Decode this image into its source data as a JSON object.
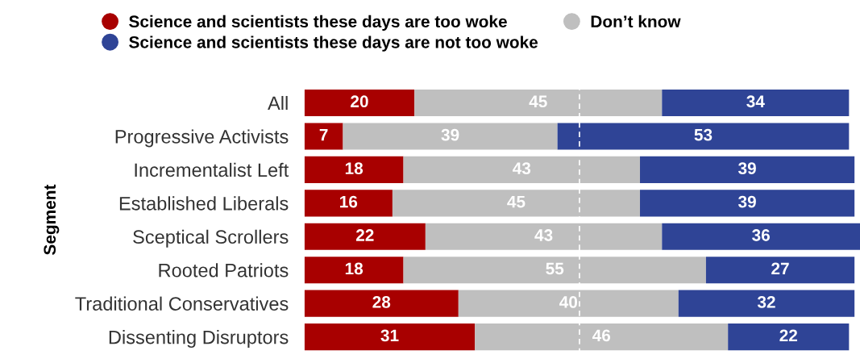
{
  "chart_data": {
    "type": "bar",
    "orientation": "horizontal",
    "stacked": true,
    "ylabel": "Segment",
    "categories": [
      "All",
      "Progressive Activists",
      "Incrementalist Left",
      "Established Liberals",
      "Sceptical Scrollers",
      "Rooted Patriots",
      "Traditional Conservatives",
      "Dissenting Disruptors"
    ],
    "series": [
      {
        "name": "Science and scientists these days are too woke",
        "color": "#a80000",
        "values": [
          20,
          7,
          18,
          16,
          22,
          18,
          28,
          31
        ]
      },
      {
        "name": "Don’t know",
        "color": "#bfbfbf",
        "values": [
          45,
          39,
          43,
          45,
          43,
          55,
          40,
          46
        ]
      },
      {
        "name": "Science and scientists these days are not too woke",
        "color": "#2f4496",
        "values": [
          34,
          53,
          39,
          39,
          36,
          27,
          32,
          22
        ]
      }
    ],
    "data_labels": true,
    "legend": "top",
    "grid": false,
    "ref_lines": [
      {
        "axis": "x",
        "value": 50,
        "color": "#ffffff",
        "line_style": "dashed"
      }
    ]
  }
}
